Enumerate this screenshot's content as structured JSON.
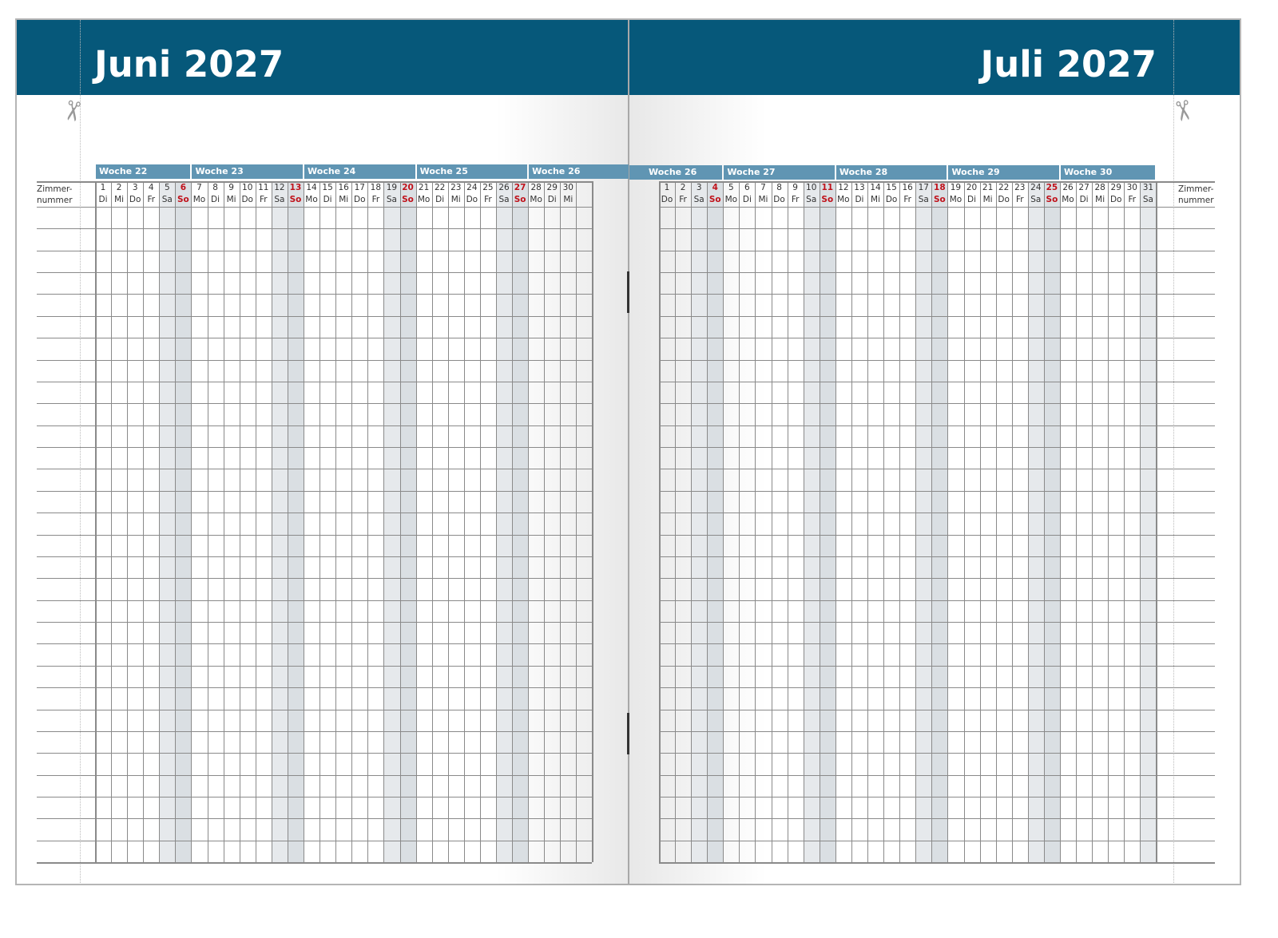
{
  "pages": [
    {
      "title": "Juni 2027",
      "room_label": [
        "Zimmer-",
        "nummer"
      ],
      "weeks": [
        {
          "label": "Woche 22",
          "first_col": 0,
          "span": 6
        },
        {
          "label": "Woche 23",
          "first_col": 6,
          "span": 7
        },
        {
          "label": "Woche 24",
          "first_col": 13,
          "span": 7
        },
        {
          "label": "Woche 25",
          "first_col": 20,
          "span": 7
        },
        {
          "label": "Woche 26",
          "first_col": 27,
          "span": 3
        }
      ],
      "days": [
        "1",
        "2",
        "3",
        "4",
        "5",
        "6",
        "7",
        "8",
        "9",
        "10",
        "11",
        "12",
        "13",
        "14",
        "15",
        "16",
        "17",
        "18",
        "19",
        "20",
        "21",
        "22",
        "23",
        "24",
        "25",
        "26",
        "27",
        "28",
        "29",
        "30",
        ""
      ],
      "weekdays": [
        "Di",
        "Mi",
        "Do",
        "Fr",
        "Sa",
        "So",
        "Mo",
        "Di",
        "Mi",
        "Do",
        "Fr",
        "Sa",
        "So",
        "Mo",
        "Di",
        "Mi",
        "Do",
        "Fr",
        "Sa",
        "So",
        "Mo",
        "Di",
        "Mi",
        "Do",
        "Fr",
        "Sa",
        "So",
        "Mo",
        "Di",
        "Mi",
        ""
      ],
      "rows": 30
    },
    {
      "title": "Juli 2027",
      "room_label": [
        "Zimmer-",
        "nummer"
      ],
      "weeks": [
        {
          "label": "Woche 26",
          "first_col": 0,
          "span": 4
        },
        {
          "label": "Woche 27",
          "first_col": 4,
          "span": 7
        },
        {
          "label": "Woche 28",
          "first_col": 11,
          "span": 7
        },
        {
          "label": "Woche 29",
          "first_col": 18,
          "span": 7
        },
        {
          "label": "Woche 30",
          "first_col": 25,
          "span": 6
        }
      ],
      "days": [
        "1",
        "2",
        "3",
        "4",
        "5",
        "6",
        "7",
        "8",
        "9",
        "10",
        "11",
        "12",
        "13",
        "14",
        "15",
        "16",
        "17",
        "18",
        "19",
        "20",
        "21",
        "22",
        "23",
        "24",
        "25",
        "26",
        "27",
        "28",
        "29",
        "30",
        "31"
      ],
      "weekdays": [
        "Do",
        "Fr",
        "Sa",
        "So",
        "Mo",
        "Di",
        "Mi",
        "Do",
        "Fr",
        "Sa",
        "So",
        "Mo",
        "Di",
        "Mi",
        "Do",
        "Fr",
        "Sa",
        "So",
        "Mo",
        "Di",
        "Mi",
        "Do",
        "Fr",
        "Sa",
        "So",
        "Mo",
        "Di",
        "Mi",
        "Do",
        "Fr",
        "Sa"
      ],
      "rows": 30
    }
  ],
  "colors": {
    "header": "#06587a",
    "week_bar": "#6095b3",
    "sunday_text": "#c0121b",
    "saturday_shade": "#e6e9ec",
    "sunday_shade": "#dadfe3"
  },
  "icons": [
    "scissors-icon"
  ]
}
